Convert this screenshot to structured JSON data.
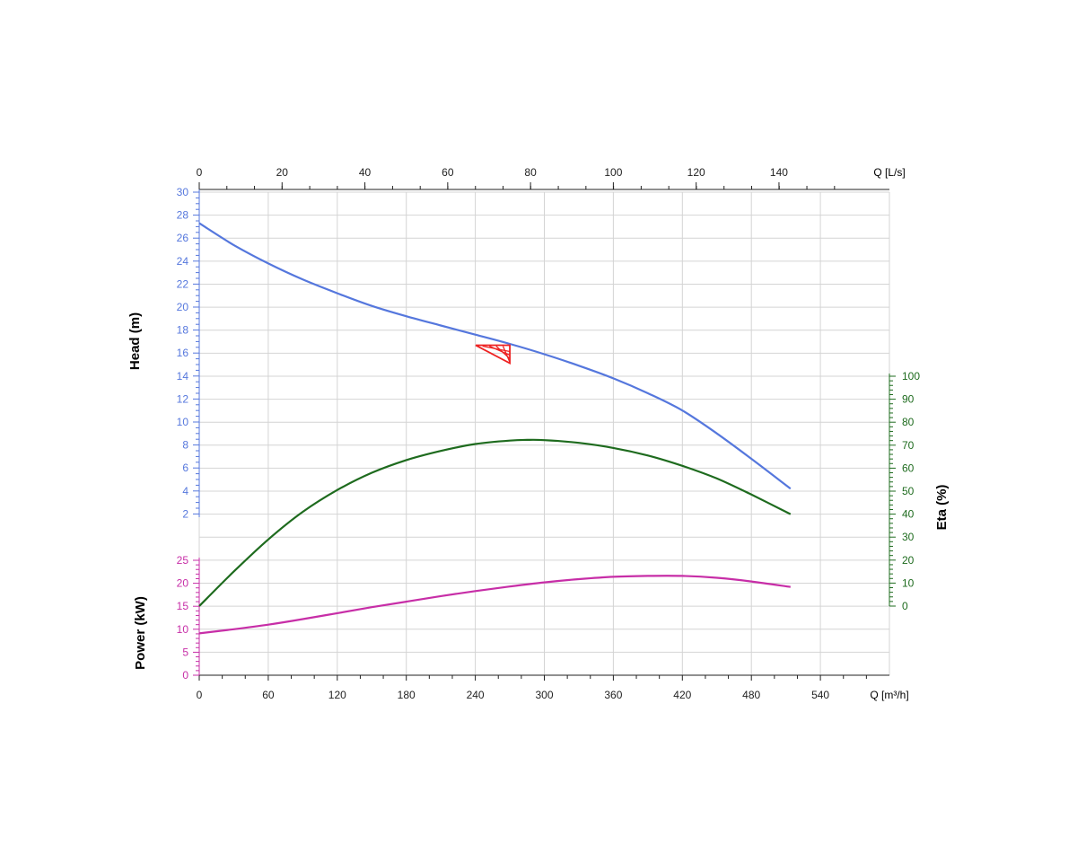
{
  "colors": {
    "head": "#5577dd",
    "eta": "#1e6b1e",
    "power": "#c72ea7",
    "duty": "#ee2222",
    "axis": "#222222",
    "grid": "#d4d4d4"
  },
  "labels": {
    "head_title": "Head (m)",
    "power_title": "Power (kW)",
    "eta_title": "Eta (%)",
    "q_bottom_unit": "Q [m³/h]",
    "q_top_unit": "Q [L/s]"
  },
  "chart_data": {
    "type": "line",
    "title": "",
    "grid": true,
    "x_bottom": {
      "label": "Q [m³/h]",
      "range": [
        0,
        600
      ],
      "ticks": [
        0,
        60,
        120,
        180,
        240,
        300,
        360,
        420,
        480,
        540
      ]
    },
    "x_top": {
      "label": "Q [L/s]",
      "range": [
        0,
        166.67
      ],
      "ticks": [
        0,
        20,
        40,
        60,
        80,
        100,
        120,
        140
      ]
    },
    "y_head": {
      "label": "Head (m)",
      "range": [
        0,
        30
      ],
      "ticks": [
        2,
        4,
        6,
        8,
        10,
        12,
        14,
        16,
        18,
        20,
        22,
        24,
        26,
        28,
        30
      ]
    },
    "y_power": {
      "label": "Power (kW)",
      "range": [
        0,
        25
      ],
      "ticks": [
        0,
        5,
        10,
        15,
        20,
        25
      ]
    },
    "y_eta": {
      "label": "Eta (%)",
      "range": [
        0,
        100
      ],
      "ticks": [
        0,
        10,
        20,
        30,
        40,
        50,
        60,
        70,
        80,
        90,
        100
      ]
    },
    "series": [
      {
        "name": "Head (m)",
        "axis": "head",
        "x": [
          0,
          30,
          60,
          90,
          120,
          150,
          180,
          210,
          240,
          270,
          300,
          330,
          360,
          390,
          420,
          450,
          480,
          514
        ],
        "values": [
          27.3,
          25.4,
          23.8,
          22.4,
          21.2,
          20.1,
          19.2,
          18.4,
          17.6,
          16.8,
          15.9,
          14.9,
          13.8,
          12.5,
          11.0,
          9.0,
          6.8,
          4.2
        ]
      },
      {
        "name": "Eta (%)",
        "axis": "eta",
        "x": [
          0,
          30,
          60,
          90,
          120,
          150,
          180,
          210,
          240,
          270,
          285,
          300,
          330,
          360,
          390,
          420,
          450,
          480,
          514
        ],
        "values": [
          0,
          15,
          29,
          41,
          50.5,
          58,
          63.5,
          67.5,
          70.5,
          72,
          72.3,
          72.2,
          71,
          68.8,
          65.5,
          61,
          55.5,
          48.5,
          40
        ]
      },
      {
        "name": "Power (kW)",
        "axis": "power",
        "x": [
          0,
          30,
          60,
          90,
          120,
          150,
          180,
          210,
          240,
          270,
          300,
          330,
          360,
          390,
          420,
          450,
          480,
          514
        ],
        "values": [
          9.1,
          10.0,
          11.0,
          12.2,
          13.5,
          14.8,
          16.0,
          17.2,
          18.3,
          19.3,
          20.2,
          20.9,
          21.4,
          21.6,
          21.6,
          21.2,
          20.4,
          19.2
        ]
      }
    ],
    "duty_point": {
      "q": 270,
      "head": 16.6
    }
  }
}
